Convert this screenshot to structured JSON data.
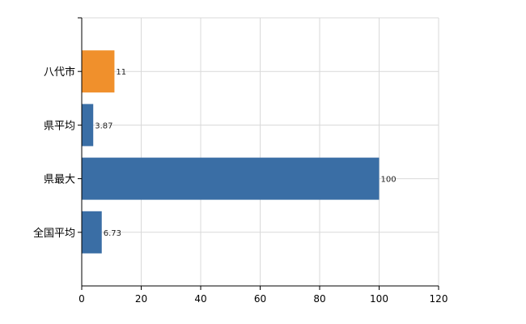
{
  "chart_data": {
    "type": "bar",
    "orientation": "horizontal",
    "categories": [
      "八代市",
      "県平均",
      "県最大",
      "全国平均"
    ],
    "values": [
      11,
      3.87,
      100,
      6.73
    ],
    "value_labels": [
      "11",
      "3.87",
      "100",
      "6.73"
    ],
    "bar_colors": [
      "#f0902c",
      "#3a6ea5",
      "#3a6ea5",
      "#3a6ea5"
    ],
    "xlim": [
      0,
      120
    ],
    "xticks": [
      0,
      20,
      40,
      60,
      80,
      100,
      120
    ],
    "xtick_labels": [
      "0",
      "20",
      "40",
      "60",
      "80",
      "100",
      "120"
    ],
    "grid": true,
    "title": "",
    "xlabel": "",
    "ylabel": ""
  }
}
